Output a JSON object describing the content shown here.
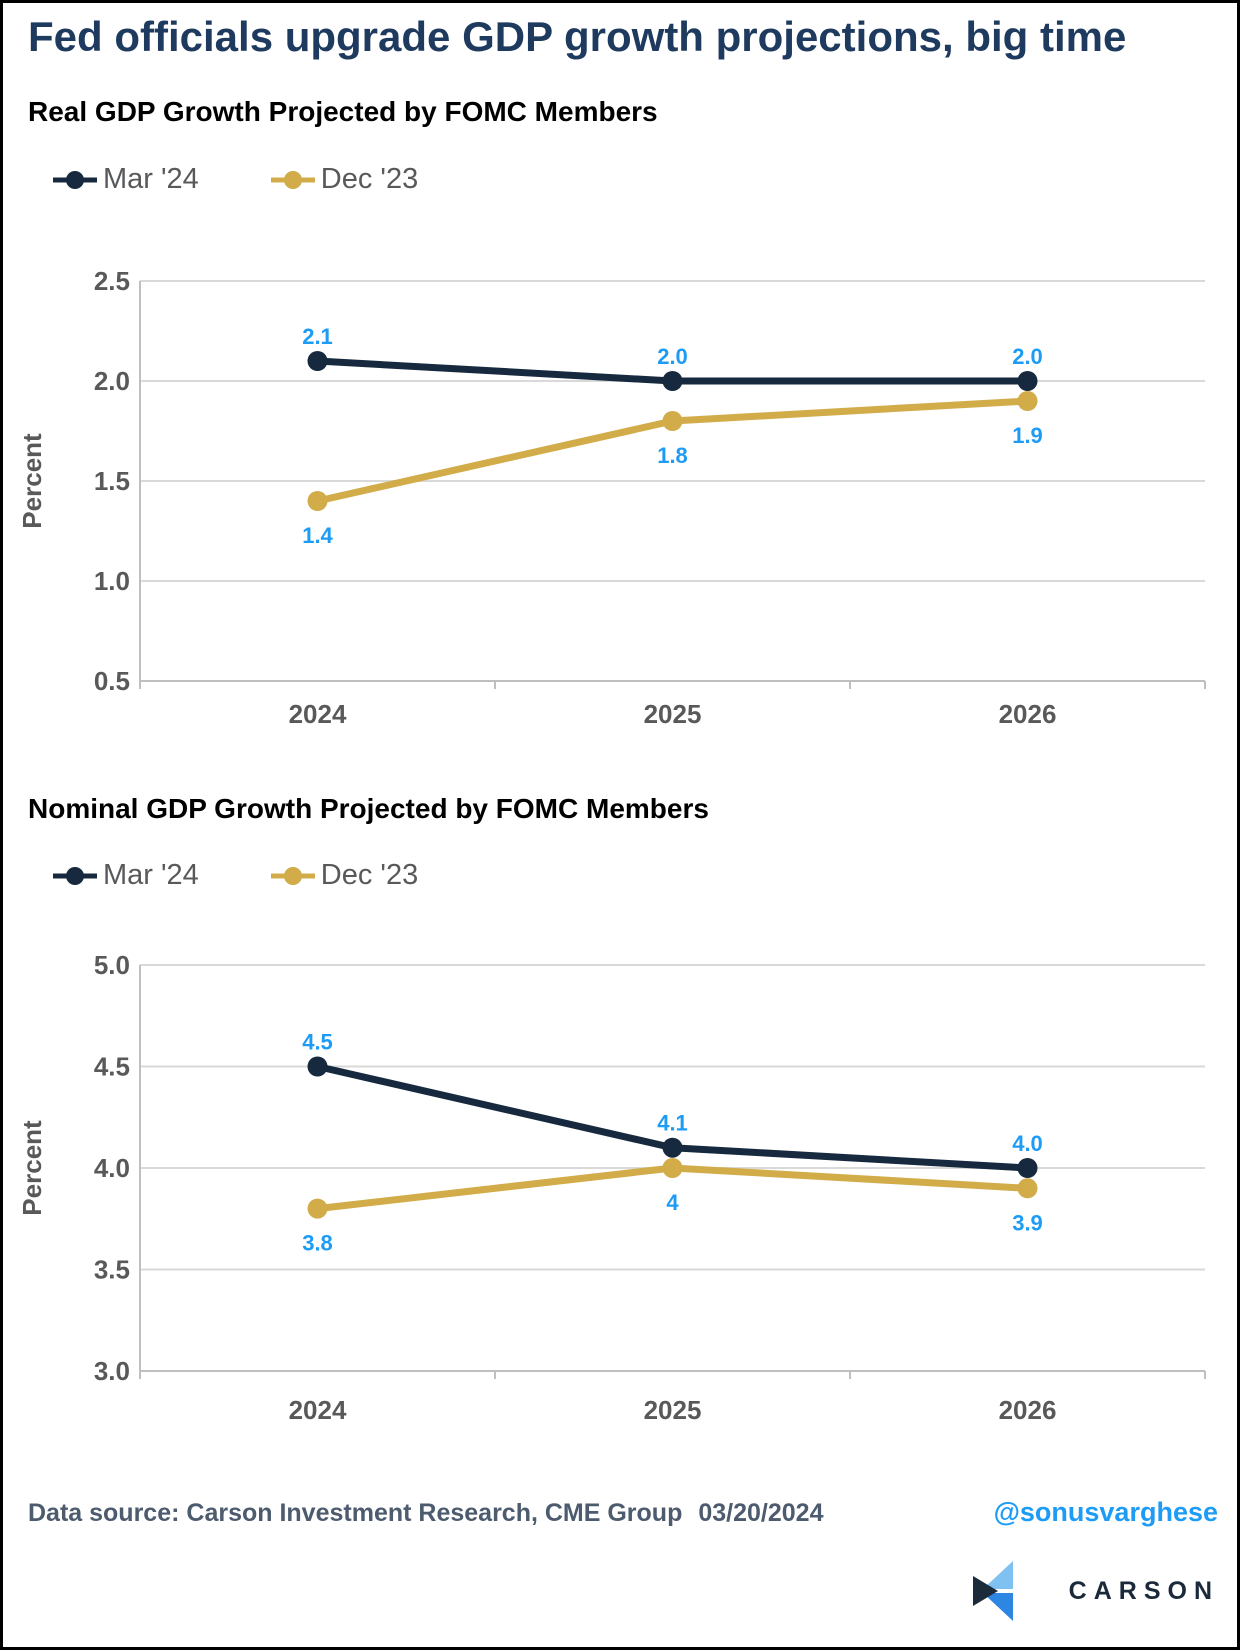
{
  "header": {
    "title": "Fed officials upgrade GDP growth projections, big time"
  },
  "colors": {
    "navy_series": "#16293e",
    "gold_series": "#d2ac49",
    "data_label_blue": "#1e9cf5",
    "grid": "#d9d9d9",
    "axis": "#bfbfbf",
    "title_navy": "#1f3a5f",
    "logo_light_blue": "#7fc1f0",
    "logo_mid_blue": "#2d87e2",
    "logo_navy": "#1c2b3a"
  },
  "chart_data": [
    {
      "type": "line",
      "title": "Real GDP Growth Projected by FOMC Members",
      "ylabel": "Percent",
      "categories": [
        "2024",
        "2025",
        "2026"
      ],
      "series": [
        {
          "name": "Mar '24",
          "color": "#16293e",
          "values": [
            2.1,
            2.0,
            2.0
          ],
          "labels": [
            "2.1",
            "2.0",
            "2.0"
          ],
          "label_position": "above"
        },
        {
          "name": "Dec '23",
          "color": "#d2ac49",
          "values": [
            1.4,
            1.8,
            1.9
          ],
          "labels": [
            "1.4",
            "1.8",
            "1.9"
          ],
          "label_position": "below"
        }
      ],
      "ylim": [
        0.5,
        2.5
      ],
      "yticks": [
        0.5,
        1.0,
        1.5,
        2.0,
        2.5
      ],
      "ytick_labels": [
        "0.5",
        "1.0",
        "1.5",
        "2.0",
        "2.5"
      ],
      "grid": true,
      "legend_position": "top-left",
      "label_color": "#1e9cf5"
    },
    {
      "type": "line",
      "title": "Nominal GDP Growth Projected by FOMC Members",
      "ylabel": "Percent",
      "categories": [
        "2024",
        "2025",
        "2026"
      ],
      "series": [
        {
          "name": "Mar '24",
          "color": "#16293e",
          "values": [
            4.5,
            4.1,
            4.0
          ],
          "labels": [
            "4.5",
            "4.1",
            "4.0"
          ],
          "label_position": "above"
        },
        {
          "name": "Dec '23",
          "color": "#d2ac49",
          "values": [
            3.8,
            4.0,
            3.9
          ],
          "labels": [
            "3.8",
            "4",
            "3.9"
          ],
          "label_position": "below"
        }
      ],
      "ylim": [
        3.0,
        5.0
      ],
      "yticks": [
        3.0,
        3.5,
        4.0,
        4.5,
        5.0
      ],
      "ytick_labels": [
        "3.0",
        "3.5",
        "4.0",
        "4.5",
        "5.0"
      ],
      "grid": true,
      "legend_position": "top-left",
      "label_color": "#1e9cf5"
    }
  ],
  "footer": {
    "source_text": "Data source: Carson Investment Research, CME Group",
    "date": "03/20/2024",
    "handle": "@sonusvarghese",
    "logo_text": "CARSON"
  }
}
